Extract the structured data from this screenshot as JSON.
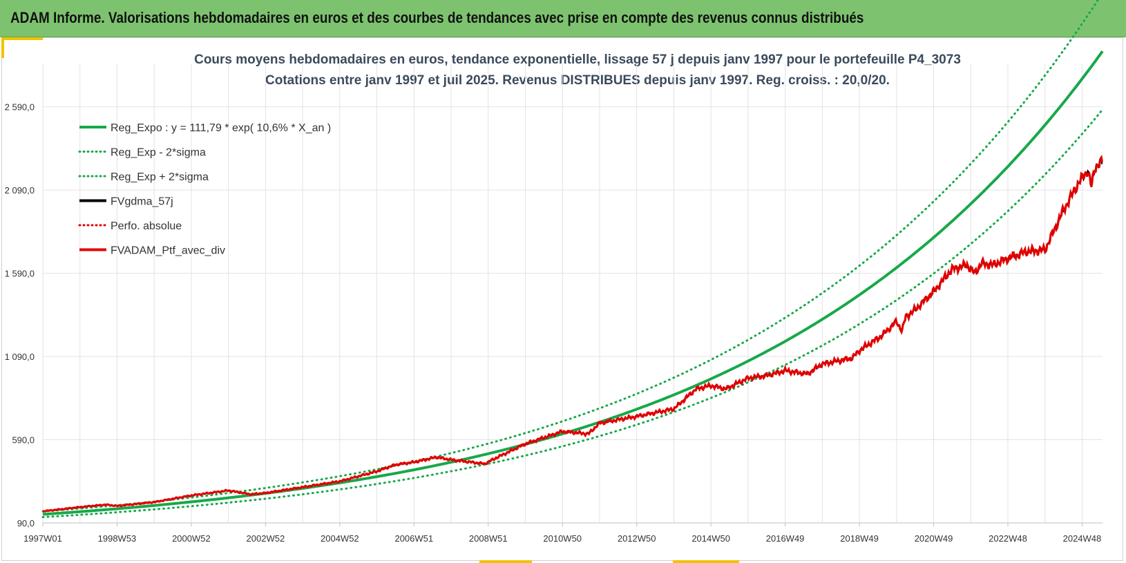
{
  "header": {
    "title": "ADAM Informe. Valorisations hebdomadaires en euros et des courbes de tendances avec prise en compte des revenus connus distribués"
  },
  "colors": {
    "banner": "#7dc36f",
    "accent": "#f2c200",
    "reg_expo": "#18a84a",
    "sigma": "#18a84a",
    "fvgdma": "#000000",
    "perfo": "#e00000",
    "fvadam": "#e00000"
  },
  "chart_data": {
    "type": "line",
    "title_lines": [
      "Cours moyens hebdomadaires  en euros, tendance exponentielle, lissage 57 j depuis janv 1997 pour le portefeuille P4_3073",
      "Cotations entre janv 1997 et juil 2025. Revenus DISTRIBUES depuis janv 1997. Reg. croiss. : 20,0/20."
    ],
    "x_range": [
      1997.0,
      2025.55
    ],
    "ylim": [
      90,
      2850
    ],
    "y_ticks": [
      {
        "value": 90,
        "label": "90,0"
      },
      {
        "value": 590,
        "label": "590,0"
      },
      {
        "value": 1090,
        "label": "1 090,0"
      },
      {
        "value": 1590,
        "label": "1 590,0"
      },
      {
        "value": 2090,
        "label": "2 090,0"
      },
      {
        "value": 2590,
        "label": "2 590,0"
      }
    ],
    "x_ticks": [
      {
        "value": 1997.0,
        "label": "1997W01"
      },
      {
        "value": 1999.0,
        "label": "1998W53"
      },
      {
        "value": 2001.0,
        "label": "2000W52"
      },
      {
        "value": 2003.0,
        "label": "2002W52"
      },
      {
        "value": 2005.0,
        "label": "2004W52"
      },
      {
        "value": 2007.0,
        "label": "2006W51"
      },
      {
        "value": 2009.0,
        "label": "2008W51"
      },
      {
        "value": 2011.0,
        "label": "2010W50"
      },
      {
        "value": 2013.0,
        "label": "2012W50"
      },
      {
        "value": 2015.0,
        "label": "2014W50"
      },
      {
        "value": 2017.0,
        "label": "2016W49"
      },
      {
        "value": 2019.0,
        "label": "2018W49"
      },
      {
        "value": 2021.0,
        "label": "2020W49"
      },
      {
        "value": 2023.0,
        "label": "2022W48"
      },
      {
        "value": 2025.0,
        "label": "2024W48"
      }
    ],
    "grid": "vertical and horizontal",
    "legend_position": "top-left",
    "regression": {
      "a": 111.79,
      "rate": 0.106,
      "x0": 1997.0,
      "sigma_factor": 0.12
    },
    "series": [
      {
        "key": "reg_expo",
        "name": "Reg_Expo : y = 111,79 * exp( 10,6% *  X_an )",
        "style": "solid-thick",
        "color": "#18a84a"
      },
      {
        "key": "reg_minus",
        "name": "Reg_Exp - 2*sigma",
        "style": "dotted",
        "color": "#18a84a"
      },
      {
        "key": "reg_plus",
        "name": "Reg_Exp + 2*sigma",
        "style": "dotted",
        "color": "#18a84a"
      },
      {
        "key": "fvgdma",
        "name": "FVgdma_57j",
        "style": "solid",
        "color": "#000000"
      },
      {
        "key": "perfo",
        "name": "Perfo. absolue",
        "style": "dotted",
        "color": "#e00000"
      },
      {
        "key": "fvadam",
        "name": "FVADAM_Ptf_avec_div",
        "style": "solid-thick",
        "color": "#e00000"
      }
    ],
    "portfolio": {
      "x": [
        1997.0,
        1998.0,
        1998.7,
        1999.0,
        2000.0,
        2001.0,
        2002.0,
        2002.6,
        2003.0,
        2004.0,
        2005.0,
        2006.0,
        2006.5,
        2007.0,
        2007.6,
        2008.0,
        2008.9,
        2009.3,
        2010.0,
        2011.0,
        2011.7,
        2012.0,
        2012.5,
        2013.0,
        2014.0,
        2014.6,
        2015.0,
        2015.4,
        2016.0,
        2016.5,
        2017.0,
        2017.6,
        2018.0,
        2018.8,
        2019.0,
        2019.6,
        2020.0,
        2020.15,
        2020.25,
        2020.5,
        2021.0,
        2021.5,
        2021.9,
        2022.1,
        2022.3,
        2022.6,
        2023.0,
        2023.5,
        2024.0,
        2024.5,
        2024.9,
        2025.15,
        2025.25,
        2025.35,
        2025.55
      ],
      "y": [
        160,
        185,
        200,
        192,
        215,
        255,
        285,
        262,
        270,
        305,
        340,
        400,
        440,
        455,
        485,
        470,
        445,
        490,
        565,
        640,
        625,
        690,
        710,
        730,
        775,
        895,
        915,
        895,
        960,
        975,
        1005,
        985,
        1045,
        1080,
        1125,
        1215,
        1300,
        1245,
        1330,
        1370,
        1480,
        1615,
        1640,
        1590,
        1650,
        1640,
        1680,
        1720,
        1730,
        1970,
        2130,
        2210,
        2110,
        2230,
        2260
      ]
    }
  }
}
